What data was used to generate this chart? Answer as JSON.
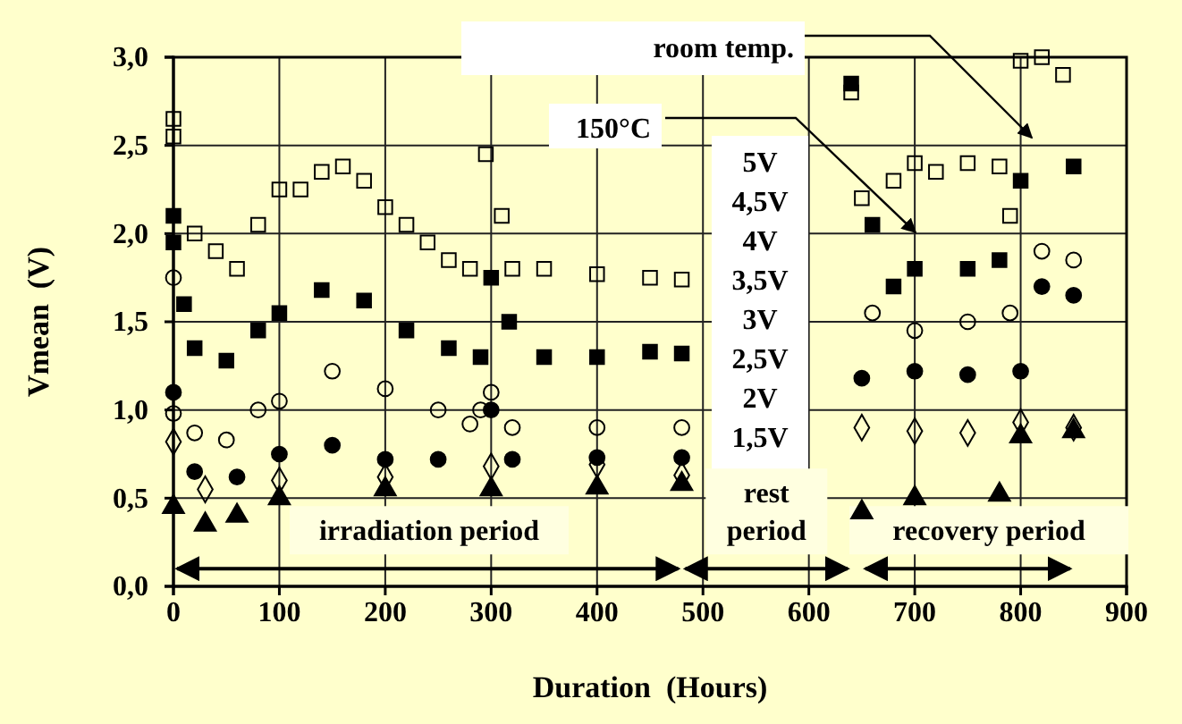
{
  "chart_data": {
    "type": "scatter",
    "xlabel": "Duration  (Hours)",
    "ylabel": "Vmean  (V)",
    "xlim": [
      0,
      900
    ],
    "xticks": [
      0,
      100,
      200,
      300,
      400,
      500,
      600,
      700,
      800,
      900
    ],
    "ylim": [
      0,
      3
    ],
    "yticks": [
      {
        "value": 0,
        "label": "0,0"
      },
      {
        "value": 0.5,
        "label": "0,5"
      },
      {
        "value": 1,
        "label": "1,0"
      },
      {
        "value": 1.5,
        "label": "1,5"
      },
      {
        "value": 2,
        "label": "2,0"
      },
      {
        "value": 2.5,
        "label": "2,5"
      },
      {
        "value": 3,
        "label": "3,0"
      }
    ],
    "grid": true,
    "series": [
      {
        "color": "#000000",
        "marker": "square",
        "x": [
          0,
          0,
          20,
          40,
          60,
          80,
          100,
          120,
          140,
          160,
          180,
          200,
          220,
          240,
          260,
          280,
          295,
          310,
          320,
          350,
          400,
          450,
          480,
          640,
          650,
          680,
          700,
          720,
          750,
          780,
          790,
          800,
          820,
          840
        ],
        "values": [
          2.65,
          2.55,
          2.0,
          1.9,
          1.8,
          2.05,
          2.25,
          2.25,
          2.35,
          2.38,
          2.3,
          2.15,
          2.05,
          1.95,
          1.85,
          1.8,
          2.45,
          2.1,
          1.8,
          1.8,
          1.77,
          1.75,
          1.74,
          2.8,
          2.2,
          2.3,
          2.4,
          2.35,
          2.4,
          2.38,
          2.1,
          2.98,
          3.0,
          2.9
        ]
      },
      {
        "color": "#000000",
        "marker": "square",
        "x": [
          0,
          0,
          10,
          20,
          50,
          80,
          100,
          140,
          180,
          220,
          260,
          290,
          300,
          317,
          350,
          400,
          450,
          480,
          640,
          660,
          680,
          700,
          750,
          780,
          800,
          850
        ],
        "values": [
          2.1,
          1.95,
          1.6,
          1.35,
          1.28,
          1.45,
          1.55,
          1.68,
          1.62,
          1.45,
          1.35,
          1.3,
          1.75,
          1.5,
          1.3,
          1.3,
          1.33,
          1.32,
          2.85,
          2.05,
          1.7,
          1.8,
          1.8,
          1.85,
          2.3,
          2.38
        ]
      },
      {
        "color": "#000000",
        "marker": "circle",
        "x": [
          0,
          0,
          20,
          50,
          80,
          100,
          150,
          200,
          250,
          280,
          290,
          300,
          320,
          400,
          480,
          660,
          700,
          750,
          790,
          820,
          850
        ],
        "values": [
          1.75,
          0.98,
          0.87,
          0.83,
          1.0,
          1.05,
          1.22,
          1.12,
          1.0,
          0.92,
          1.0,
          1.1,
          0.9,
          0.9,
          0.9,
          1.55,
          1.45,
          1.5,
          1.55,
          1.9,
          1.85
        ]
      },
      {
        "color": "#000000",
        "marker": "circle",
        "x": [
          0,
          20,
          60,
          100,
          150,
          200,
          250,
          300,
          320,
          400,
          480,
          650,
          700,
          750,
          800,
          820,
          850
        ],
        "values": [
          1.1,
          0.65,
          0.62,
          0.75,
          0.8,
          0.72,
          0.72,
          1.0,
          0.72,
          0.73,
          0.73,
          1.18,
          1.22,
          1.2,
          1.22,
          1.7,
          1.65
        ]
      },
      {
        "color": "#000000",
        "marker": "diamond",
        "x": [
          0,
          30,
          100,
          200,
          300,
          400,
          480,
          650,
          700,
          750,
          800,
          850
        ],
        "values": [
          0.82,
          0.55,
          0.6,
          0.62,
          0.68,
          0.69,
          0.63,
          0.9,
          0.88,
          0.87,
          0.93,
          0.9
        ]
      },
      {
        "color": "#000000",
        "marker": "triangle",
        "x": [
          0,
          30,
          60,
          100,
          200,
          300,
          400,
          480,
          650,
          700,
          780,
          800,
          850
        ],
        "values": [
          0.45,
          0.35,
          0.4,
          0.5,
          0.55,
          0.55,
          0.56,
          0.58,
          0.42,
          0.5,
          0.52,
          0.85,
          0.88
        ]
      }
    ],
    "annotations": [
      "room temp.",
      "150°C",
      "5V",
      "4,5V",
      "4V",
      "3,5V",
      "3V",
      "2,5V",
      "2V",
      "1,5V",
      "irradiation period",
      "rest period",
      "recovery period"
    ]
  }
}
